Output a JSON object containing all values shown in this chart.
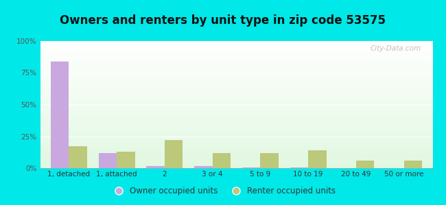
{
  "title": "Owners and renters by unit type in zip code 53575",
  "categories": [
    "1, detached",
    "1, attached",
    "2",
    "3 or 4",
    "5 to 9",
    "10 to 19",
    "20 to 49",
    "50 or more"
  ],
  "owner_values": [
    84,
    12,
    1.5,
    1.5,
    0.8,
    0.5,
    0,
    0
  ],
  "renter_values": [
    17,
    13,
    22,
    12,
    12,
    14,
    6,
    6
  ],
  "owner_color": "#c9a8e0",
  "renter_color": "#bcc87a",
  "background_outer": "#00e8e8",
  "title_fontsize": 12,
  "legend_owner": "Owner occupied units",
  "legend_renter": "Renter occupied units",
  "ylim": [
    0,
    100
  ],
  "yticks": [
    0,
    25,
    50,
    75,
    100
  ],
  "ytick_labels": [
    "0%",
    "25%",
    "50%",
    "75%",
    "100%"
  ],
  "bar_width": 0.38,
  "watermark": "City-Data.com"
}
